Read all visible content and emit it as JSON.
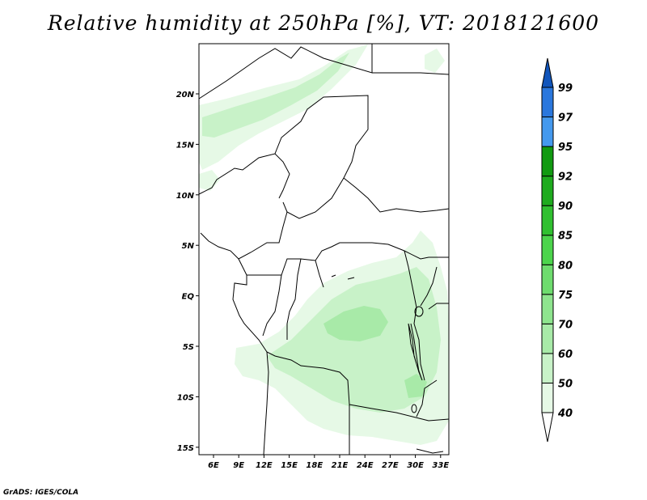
{
  "title": "Relative humidity at 250hPa [%], VT: 2018121600",
  "credit": "GrADS: IGES/COLA",
  "map": {
    "x_axis_labels": [
      "6E",
      "9E",
      "12E",
      "15E",
      "18E",
      "21E",
      "24E",
      "27E",
      "30E",
      "33E"
    ],
    "y_axis_labels": [
      "20N",
      "15N",
      "10N",
      "5N",
      "EQ",
      "5S",
      "10S",
      "15S"
    ]
  },
  "colorbar": {
    "levels": [
      "40",
      "50",
      "60",
      "70",
      "75",
      "80",
      "85",
      "90",
      "92",
      "95",
      "97",
      "99"
    ],
    "colors": [
      "#ffffff",
      "#e6f9e6",
      "#c8f2c8",
      "#a8eaa8",
      "#8ee48e",
      "#6edc6e",
      "#4cd44c",
      "#30c030",
      "#1eab1e",
      "#119a11",
      "#4499ee",
      "#2a77dd",
      "#1155bb"
    ]
  },
  "colors": {
    "field_light": "#e6f9e6",
    "field_mid": "#c8f2c8",
    "field_dark": "#a8eaa8",
    "border": "#000000"
  }
}
